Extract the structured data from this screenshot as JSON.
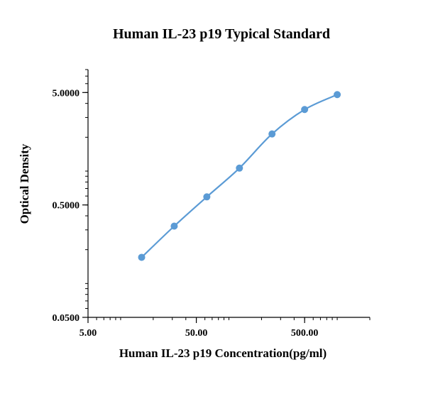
{
  "chart_data": {
    "type": "line",
    "title": "Human IL-23 p19 Typical Standard",
    "xlabel": "Human IL-23 p19 Concentration(pg/ml)",
    "ylabel": "Optical Density",
    "xscale": "log",
    "yscale": "log",
    "xlim": [
      5,
      2000
    ],
    "ylim": [
      0.05,
      8
    ],
    "xticks": [
      5,
      50,
      500
    ],
    "xtick_labels": [
      "5.00",
      "50.00",
      "500.00"
    ],
    "yticks": [
      0.05,
      0.5,
      5
    ],
    "ytick_labels": [
      "0.0500",
      "0.5000",
      "5.0000"
    ],
    "grid": false,
    "legend": "none",
    "series": [
      {
        "x": [
          15.63,
          31.25,
          62.5,
          125,
          250,
          500,
          1000
        ],
        "y": [
          0.171,
          0.324,
          0.59,
          1.063,
          2.14,
          3.53,
          4.79
        ],
        "color": "#5b9bd5"
      }
    ]
  }
}
